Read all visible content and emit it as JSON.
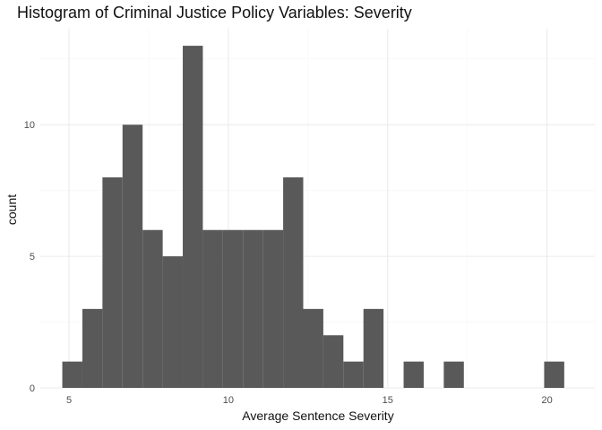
{
  "chart_data": {
    "type": "bar",
    "title": "Histogram of Criminal Justice Policy Variables: Severity",
    "xlabel": "Average Sentence Severity",
    "ylabel": "count",
    "xlim": [
      4.1,
      21.5
    ],
    "ylim": [
      0,
      13.65
    ],
    "xticks": [
      5,
      10,
      15,
      20
    ],
    "xtick_labels": [
      "5",
      "10",
      "15",
      "20"
    ],
    "yticks": [
      0,
      5,
      10
    ],
    "ytick_labels": [
      "0",
      "5",
      "10"
    ],
    "grid": true,
    "bin_width": 0.63,
    "bin_left_edges": [
      4.79,
      5.42,
      6.05,
      6.68,
      7.31,
      7.94,
      8.57,
      9.2,
      9.83,
      10.46,
      11.09,
      11.72,
      12.35,
      12.98,
      13.61,
      14.24,
      14.87,
      15.5,
      16.13,
      16.76,
      17.39,
      18.02,
      18.65,
      19.28,
      19.91,
      20.54
    ],
    "values": [
      1,
      3,
      8,
      10,
      6,
      5,
      13,
      6,
      6,
      6,
      6,
      8,
      3,
      2,
      1,
      3,
      0,
      1,
      0,
      1,
      0,
      0,
      0,
      0,
      1,
      0
    ],
    "colors": {
      "bar": "#595959",
      "panel_background": "#ffffff",
      "grid_major": "#ebebeb",
      "grid_minor": "#f5f5f5"
    }
  }
}
